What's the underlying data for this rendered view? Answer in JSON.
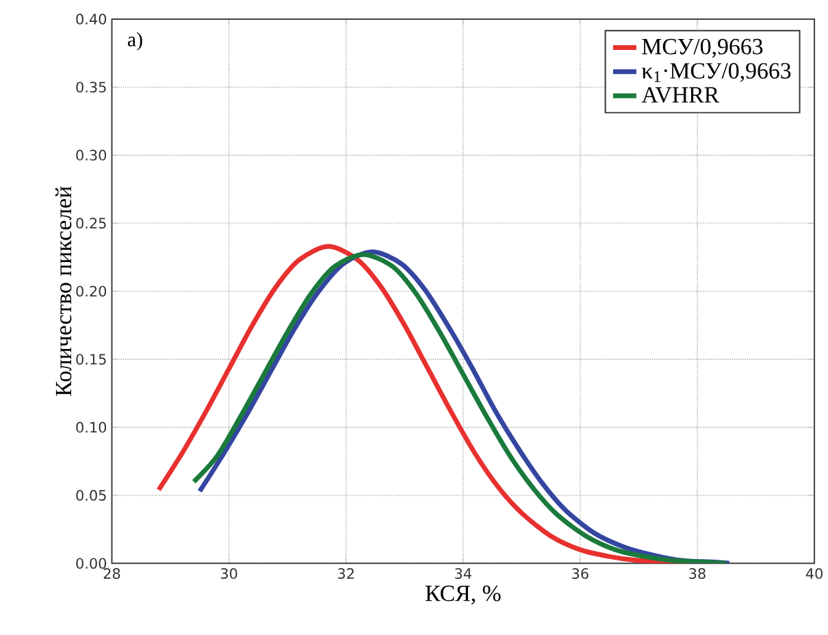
{
  "chart_data": {
    "type": "line",
    "xlabel": "КСЯ, %",
    "ylabel": "Количество пикселей",
    "annotations": [
      "а)"
    ],
    "xlim": [
      28,
      40
    ],
    "xticks": [
      28,
      30,
      32,
      34,
      36,
      38,
      40
    ],
    "ylim": [
      0,
      0.4
    ],
    "yticks": [
      {
        "value": 0,
        "label": "0.00"
      },
      {
        "value": 0.05,
        "label": "0.05"
      },
      {
        "value": 0.1,
        "label": "0.10"
      },
      {
        "value": 0.15,
        "label": "0.15"
      },
      {
        "value": 0.2,
        "label": "0.20"
      },
      {
        "value": 0.25,
        "label": "0.25"
      },
      {
        "value": 0.3,
        "label": "0.30"
      },
      {
        "value": 0.35,
        "label": "0.35"
      },
      {
        "value": 0.4,
        "label": "0.40"
      }
    ],
    "grid": true,
    "legend": "top right",
    "marker": "none",
    "line_style": "solid",
    "series": [
      {
        "name": "МСУ/0,9663",
        "color": "#e8312f",
        "x": [
          28.8,
          29.2,
          29.6,
          30.0,
          30.4,
          30.8,
          31.2,
          31.7,
          32.2,
          32.6,
          33.0,
          33.4,
          33.8,
          34.2,
          34.6,
          35.0,
          35.5,
          36.0,
          36.5,
          37.0,
          37.5,
          38.0,
          38.5
        ],
        "values": [
          0.054,
          0.081,
          0.111,
          0.143,
          0.175,
          0.203,
          0.223,
          0.233,
          0.223,
          0.203,
          0.175,
          0.143,
          0.111,
          0.081,
          0.056,
          0.037,
          0.02,
          0.01,
          0.005,
          0.002,
          0.001,
          0,
          0
        ]
      },
      {
        "name": "κ$_{1}$·МСУ/0,9663",
        "color": "#3446a0",
        "x": [
          29.5,
          29.9,
          30.3,
          30.7,
          31.1,
          31.5,
          31.95,
          32.45,
          32.95,
          33.35,
          33.75,
          34.15,
          34.55,
          34.95,
          35.35,
          35.75,
          36.25,
          36.75,
          37.25,
          37.75,
          38.25,
          38.55
        ],
        "values": [
          0.053,
          0.08,
          0.109,
          0.14,
          0.171,
          0.198,
          0.22,
          0.229,
          0.22,
          0.201,
          0.174,
          0.144,
          0.112,
          0.084,
          0.059,
          0.039,
          0.022,
          0.012,
          0.006,
          0.002,
          0.001,
          0
        ]
      },
      {
        "name": "AVHRR",
        "color": "#1a7a3c",
        "x": [
          29.4,
          29.8,
          30.2,
          30.6,
          31.0,
          31.4,
          31.8,
          32.3,
          32.8,
          33.2,
          33.6,
          34.0,
          34.4,
          34.8,
          35.2,
          35.6,
          36.1,
          36.6,
          37.1,
          37.6,
          38.1,
          38.5
        ],
        "values": [
          0.06,
          0.079,
          0.108,
          0.139,
          0.17,
          0.198,
          0.218,
          0.227,
          0.218,
          0.198,
          0.17,
          0.139,
          0.108,
          0.079,
          0.055,
          0.036,
          0.02,
          0.01,
          0.005,
          0.002,
          0.001,
          0
        ]
      }
    ]
  }
}
